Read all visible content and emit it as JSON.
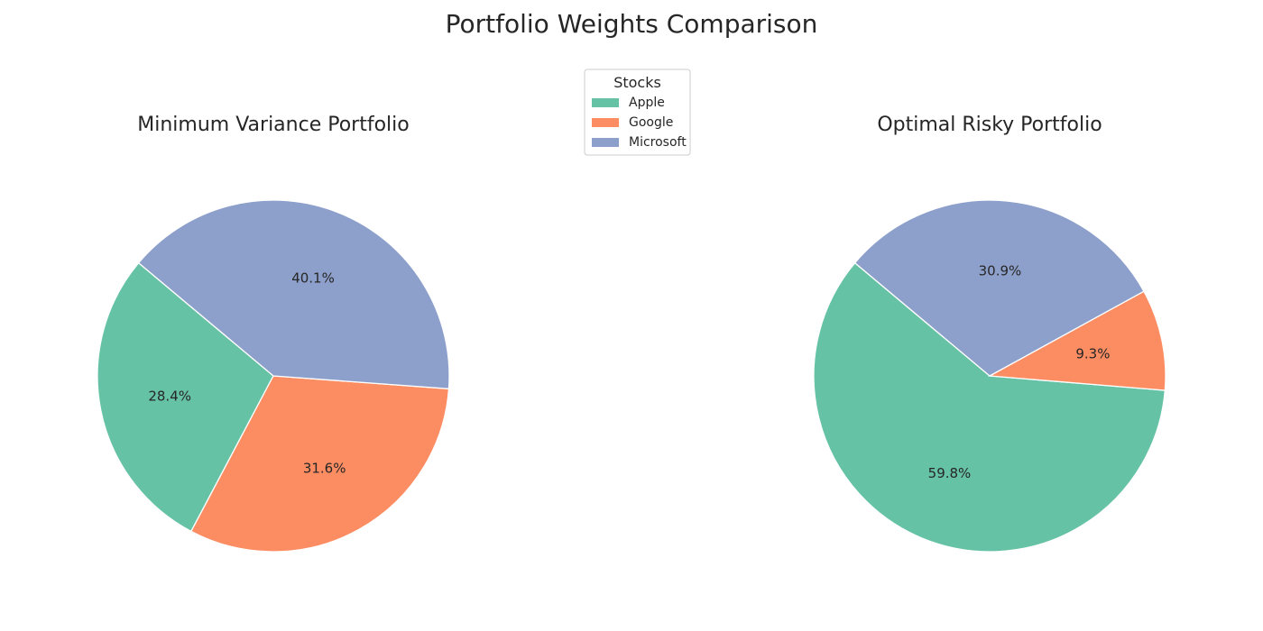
{
  "figure": {
    "title": "Portfolio Weights Comparison"
  },
  "legend": {
    "title": "Stocks",
    "placement": "top-center",
    "entries": [
      "Apple",
      "Google",
      "Microsoft"
    ]
  },
  "colors": {
    "Apple": "#66c2a5",
    "Google": "#fc8d62",
    "Microsoft": "#8da0cb"
  },
  "chart_data": [
    {
      "type": "pie",
      "title": "Minimum Variance Portfolio",
      "start_angle_deg": 140,
      "direction": "counterclockwise",
      "slices": [
        {
          "label": "Apple",
          "value": 28.4,
          "display": "28.4%"
        },
        {
          "label": "Google",
          "value": 31.6,
          "display": "31.6%"
        },
        {
          "label": "Microsoft",
          "value": 40.1,
          "display": "40.1%"
        }
      ]
    },
    {
      "type": "pie",
      "title": "Optimal Risky Portfolio",
      "start_angle_deg": 140,
      "direction": "counterclockwise",
      "slices": [
        {
          "label": "Apple",
          "value": 59.8,
          "display": "59.8%"
        },
        {
          "label": "Google",
          "value": 9.3,
          "display": "9.3%"
        },
        {
          "label": "Microsoft",
          "value": 30.9,
          "display": "30.9%"
        }
      ]
    }
  ]
}
